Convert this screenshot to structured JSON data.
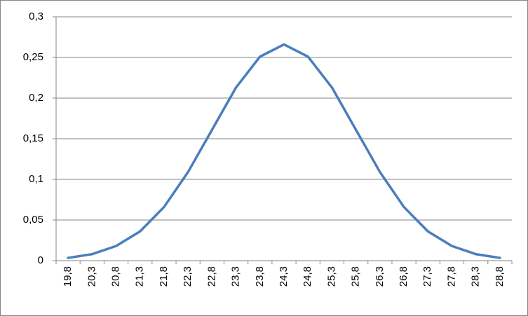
{
  "chart_data": {
    "type": "line",
    "categories": [
      "19,8",
      "20,3",
      "20,8",
      "21,3",
      "21,8",
      "22,3",
      "22,8",
      "23,3",
      "23,8",
      "24,3",
      "24,8",
      "25,3",
      "25,8",
      "26,3",
      "26,8",
      "27,3",
      "27,8",
      "28,3",
      "28,8"
    ],
    "values": [
      0.0034,
      0.008,
      0.018,
      0.036,
      0.066,
      0.109,
      0.161,
      0.213,
      0.251,
      0.266,
      0.251,
      0.213,
      0.161,
      0.109,
      0.066,
      0.036,
      0.018,
      0.008,
      0.0034
    ],
    "color": "#4a7ebb",
    "ylim": [
      0,
      0.3
    ],
    "yticks": [
      0,
      {
        "value": 0.05,
        "label": "0,05"
      },
      {
        "value": 0.1,
        "label": "0,1"
      },
      {
        "value": 0.15,
        "label": "0,15"
      },
      {
        "value": 0.2,
        "label": "0,2"
      },
      {
        "value": 0.25,
        "label": "0,25"
      },
      {
        "value": 0.3,
        "label": "0,3"
      }
    ],
    "grid": true
  }
}
